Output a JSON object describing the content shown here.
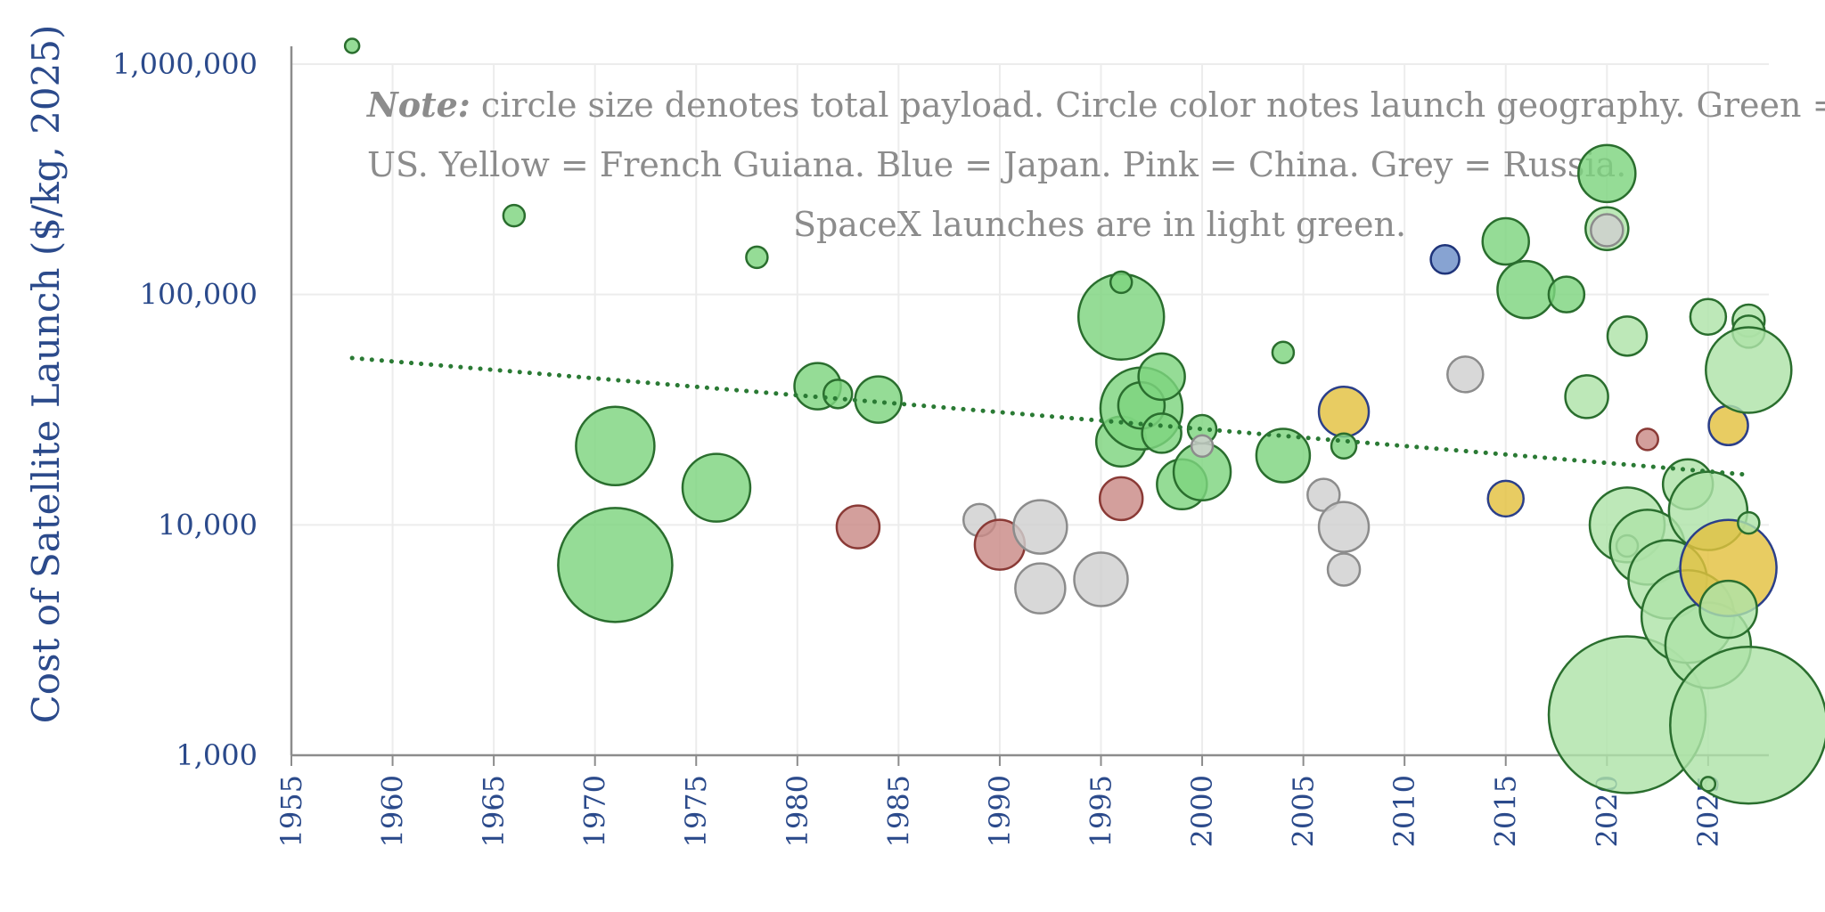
{
  "chart_data": {
    "type": "scatter",
    "title": "",
    "xlabel": "",
    "ylabel": "Cost of Satellite Launch ($/kg, 2025)",
    "x_range": [
      1955,
      2028
    ],
    "y_range": [
      1000,
      1000000
    ],
    "y_scale": "log",
    "x_ticks": [
      "1955",
      "1960",
      "1965",
      "1970",
      "1975",
      "1980",
      "1985",
      "1990",
      "1995",
      "2000",
      "2005",
      "2010",
      "2015",
      "2020",
      "2025"
    ],
    "y_ticks": [
      {
        "value": 1000,
        "label": "1,000"
      },
      {
        "value": 10000,
        "label": "10,000"
      },
      {
        "value": 100000,
        "label": "100,000"
      },
      {
        "value": 1000000,
        "label": "1,000,000"
      }
    ],
    "grid": true,
    "note": {
      "bold": "Note:",
      "line1": " circle size denotes total payload. Circle color notes launch geography. Green =",
      "line2": "US. Yellow = French Guiana. Blue = Japan. Pink = China. Grey = Russia.",
      "line3": "SpaceX launches are in light green."
    },
    "colors": {
      "US": {
        "fill": "#7ed47f",
        "stroke": "#2a6e2e"
      },
      "SpaceX": {
        "fill": "#aee3a8",
        "stroke": "#2a6e2e"
      },
      "French Guiana": {
        "fill": "#e3c13f",
        "stroke": "#2b3f8a"
      },
      "Japan": {
        "fill": "#6c8fc8",
        "stroke": "#1f347a"
      },
      "China": {
        "fill": "#c98a86",
        "stroke": "#8a3a36"
      },
      "Russia": {
        "fill": "#cfcfcf",
        "stroke": "#8c8c8c"
      }
    },
    "trendline": {
      "color": "#2a7a34",
      "style": "dotted",
      "x": [
        1958,
        2027
      ],
      "y": [
        53000,
        16500
      ]
    },
    "points": [
      {
        "x": 1958,
        "y": 1200000,
        "geo": "US",
        "size": 6
      },
      {
        "x": 1966,
        "y": 220000,
        "geo": "US",
        "size": 10
      },
      {
        "x": 1971,
        "y": 22000,
        "geo": "US",
        "size": 42
      },
      {
        "x": 1971,
        "y": 6700,
        "geo": "US",
        "size": 62
      },
      {
        "x": 1976,
        "y": 14500,
        "geo": "US",
        "size": 36
      },
      {
        "x": 1978,
        "y": 145000,
        "geo": "US",
        "size": 10
      },
      {
        "x": 1981,
        "y": 40000,
        "geo": "US",
        "size": 24
      },
      {
        "x": 1982,
        "y": 37000,
        "geo": "US",
        "size": 14
      },
      {
        "x": 1983,
        "y": 9800,
        "geo": "China",
        "size": 22
      },
      {
        "x": 1984,
        "y": 35000,
        "geo": "US",
        "size": 24
      },
      {
        "x": 1989,
        "y": 10500,
        "geo": "Russia",
        "size": 16
      },
      {
        "x": 1990,
        "y": 8200,
        "geo": "China",
        "size": 26
      },
      {
        "x": 1992,
        "y": 9800,
        "geo": "Russia",
        "size": 28
      },
      {
        "x": 1992,
        "y": 5300,
        "geo": "Russia",
        "size": 26
      },
      {
        "x": 1995,
        "y": 5800,
        "geo": "Russia",
        "size": 28
      },
      {
        "x": 1996,
        "y": 80000,
        "geo": "US",
        "size": 46
      },
      {
        "x": 1996,
        "y": 113000,
        "geo": "US",
        "size": 10
      },
      {
        "x": 1996,
        "y": 23000,
        "geo": "US",
        "size": 26
      },
      {
        "x": 1996,
        "y": 13000,
        "geo": "China",
        "size": 22
      },
      {
        "x": 1997,
        "y": 32000,
        "geo": "US",
        "size": 44
      },
      {
        "x": 1997,
        "y": 33000,
        "geo": "US",
        "size": 24
      },
      {
        "x": 1998,
        "y": 44000,
        "geo": "US",
        "size": 24
      },
      {
        "x": 1998,
        "y": 25000,
        "geo": "US",
        "size": 20
      },
      {
        "x": 1999,
        "y": 15000,
        "geo": "US",
        "size": 26
      },
      {
        "x": 2000,
        "y": 17000,
        "geo": "US",
        "size": 30
      },
      {
        "x": 2000,
        "y": 26000,
        "geo": "US",
        "size": 14
      },
      {
        "x": 2000,
        "y": 22000,
        "geo": "Russia",
        "size": 10
      },
      {
        "x": 2004,
        "y": 56000,
        "geo": "US",
        "size": 10
      },
      {
        "x": 2004,
        "y": 20000,
        "geo": "US",
        "size": 28
      },
      {
        "x": 2006,
        "y": 13500,
        "geo": "Russia",
        "size": 16
      },
      {
        "x": 2007,
        "y": 31000,
        "geo": "French Guiana",
        "size": 26
      },
      {
        "x": 2007,
        "y": 22000,
        "geo": "US",
        "size": 12
      },
      {
        "x": 2007,
        "y": 9800,
        "geo": "Russia",
        "size": 26
      },
      {
        "x": 2007,
        "y": 6400,
        "geo": "Russia",
        "size": 16
      },
      {
        "x": 2012,
        "y": 142000,
        "geo": "Japan",
        "size": 14
      },
      {
        "x": 2013,
        "y": 45000,
        "geo": "Russia",
        "size": 18
      },
      {
        "x": 2015,
        "y": 170000,
        "geo": "US",
        "size": 24
      },
      {
        "x": 2015,
        "y": 13000,
        "geo": "French Guiana",
        "size": 18
      },
      {
        "x": 2016,
        "y": 105000,
        "geo": "US",
        "size": 30
      },
      {
        "x": 2018,
        "y": 100000,
        "geo": "US",
        "size": 18
      },
      {
        "x": 2019,
        "y": 36000,
        "geo": "SpaceX",
        "size": 22
      },
      {
        "x": 2020,
        "y": 335000,
        "geo": "US",
        "size": 30
      },
      {
        "x": 2020,
        "y": 193000,
        "geo": "SpaceX",
        "size": 22
      },
      {
        "x": 2020,
        "y": 190000,
        "geo": "Russia",
        "size": 16
      },
      {
        "x": 2021,
        "y": 66000,
        "geo": "SpaceX",
        "size": 20
      },
      {
        "x": 2021,
        "y": 10000,
        "geo": "SpaceX",
        "size": 40
      },
      {
        "x": 2021,
        "y": 8100,
        "geo": "SpaceX",
        "size": 10
      },
      {
        "x": 2021,
        "y": 1500,
        "geo": "SpaceX",
        "size": 86
      },
      {
        "x": 2022,
        "y": 23500,
        "geo": "China",
        "size": 10
      },
      {
        "x": 2022,
        "y": 8000,
        "geo": "SpaceX",
        "size": 40
      },
      {
        "x": 2023,
        "y": 5800,
        "geo": "SpaceX",
        "size": 42
      },
      {
        "x": 2024,
        "y": 15000,
        "geo": "SpaceX",
        "size": 26
      },
      {
        "x": 2024,
        "y": 4000,
        "geo": "SpaceX",
        "size": 50
      },
      {
        "x": 2025,
        "y": 80000,
        "geo": "SpaceX",
        "size": 18
      },
      {
        "x": 2025,
        "y": 11500,
        "geo": "SpaceX",
        "size": 42
      },
      {
        "x": 2025,
        "y": 3000,
        "geo": "SpaceX",
        "size": 46
      },
      {
        "x": 2026,
        "y": 27000,
        "geo": "French Guiana",
        "size": 20
      },
      {
        "x": 2026,
        "y": 6500,
        "geo": "French Guiana",
        "size": 52
      },
      {
        "x": 2026,
        "y": 4300,
        "geo": "SpaceX",
        "size": 30
      },
      {
        "x": 2027,
        "y": 77000,
        "geo": "SpaceX",
        "size": 16
      },
      {
        "x": 2027,
        "y": 69000,
        "geo": "SpaceX",
        "size": 16
      },
      {
        "x": 2027,
        "y": 47000,
        "geo": "SpaceX",
        "size": 46
      },
      {
        "x": 2027,
        "y": 10200,
        "geo": "SpaceX",
        "size": 10
      },
      {
        "x": 2027,
        "y": 1350,
        "geo": "SpaceX",
        "size": 86
      },
      {
        "x": 2025,
        "y": 750,
        "geo": "SpaceX",
        "size": 6
      }
    ]
  }
}
